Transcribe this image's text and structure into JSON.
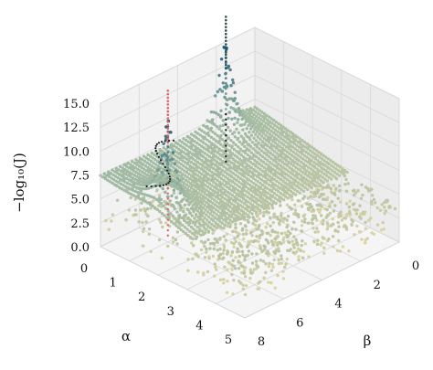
{
  "chart_data": {
    "type": "scatter",
    "projection": "3d",
    "title": "",
    "xlabel": "α",
    "ylabel": "β",
    "zlabel": "−log₁₀(J)",
    "xlim": [
      0,
      5
    ],
    "ylim": [
      0,
      8
    ],
    "zlim": [
      0,
      15
    ],
    "x_ticks": [
      "0",
      "1",
      "2",
      "3",
      "4",
      "5"
    ],
    "y_ticks": [
      "0",
      "2",
      "4",
      "6",
      "8"
    ],
    "z_ticks": [
      "0.0",
      "2.5",
      "5.0",
      "7.5",
      "10.0",
      "12.5",
      "15.0"
    ],
    "grid": true,
    "colormap": [
      "#e8d9a6",
      "#9fb9a3",
      "#1f5f7f"
    ],
    "peaks": [
      {
        "x": 1.8,
        "y": 7.2,
        "z": 15.5,
        "trail_color": "#e06666"
      },
      {
        "x": 0.2,
        "y": 1.8,
        "z": 15.5,
        "trail_color": "#2f4f4f"
      }
    ],
    "trail_point_color": "#222222"
  }
}
